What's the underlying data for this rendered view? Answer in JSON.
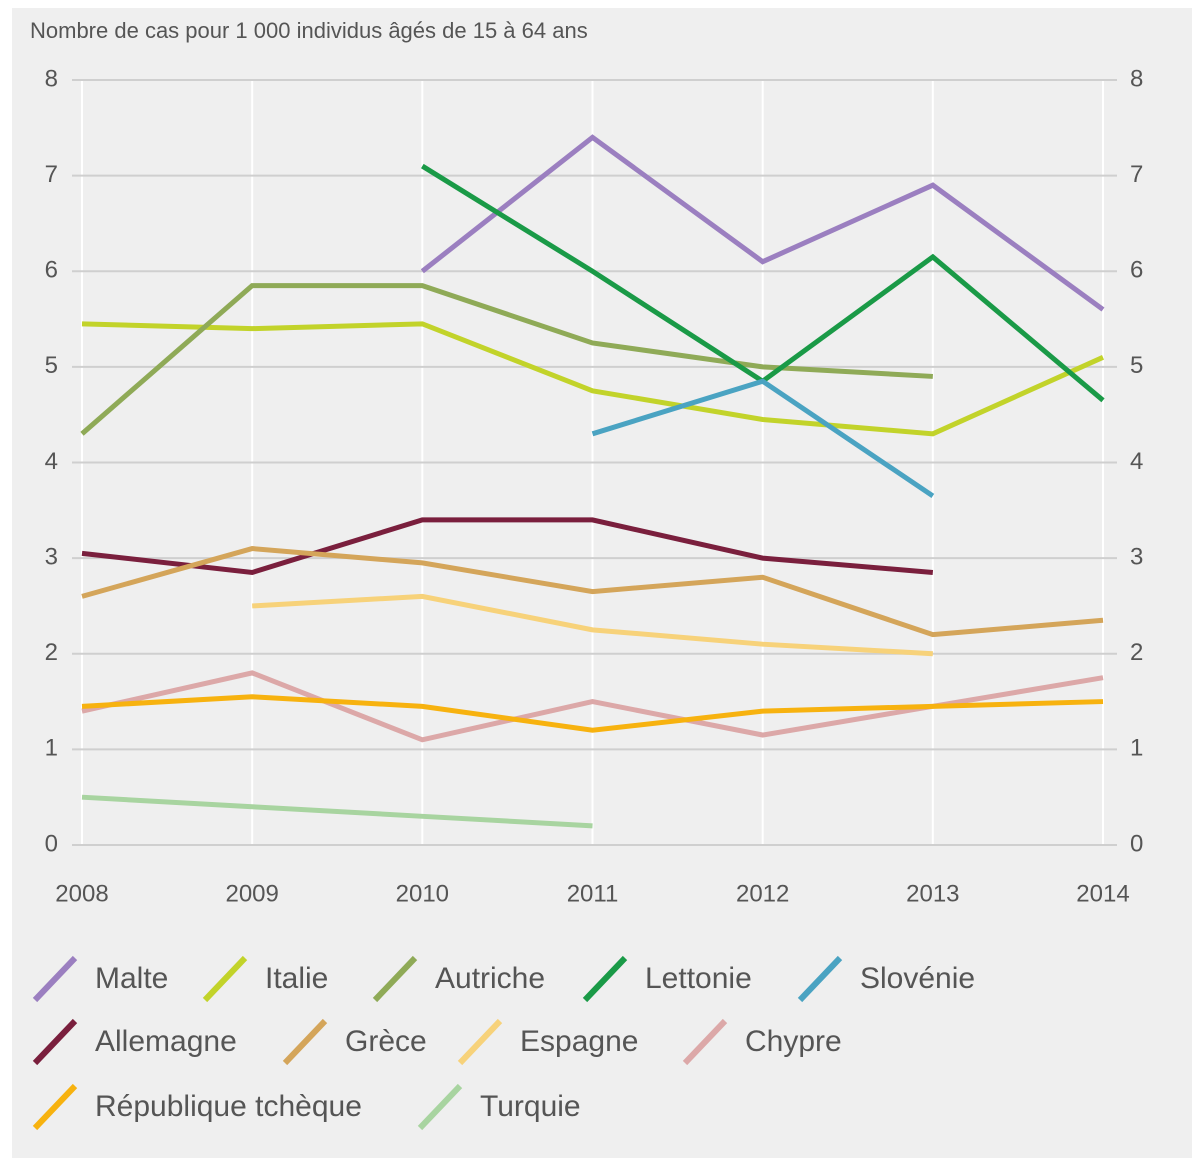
{
  "chart_data": {
    "type": "line",
    "title": "Nombre de cas pour 1 000 individus âgés de 15 à 64 ans",
    "categories": [
      "2008",
      "2009",
      "2010",
      "2011",
      "2012",
      "2013",
      "2014"
    ],
    "ylim": [
      0,
      8
    ],
    "yticks": [
      0,
      1,
      2,
      3,
      4,
      5,
      6,
      7,
      8
    ],
    "y2ticks": [
      0,
      1,
      2,
      3,
      4,
      5,
      6,
      7,
      8
    ],
    "grid": true,
    "series": [
      {
        "name": "Malte",
        "color": "#9b7fc0",
        "values": [
          null,
          null,
          6.0,
          7.4,
          6.1,
          6.9,
          5.6
        ]
      },
      {
        "name": "Italie",
        "color": "#c2d32a",
        "values": [
          5.45,
          5.4,
          5.45,
          4.75,
          4.45,
          4.3,
          5.1
        ]
      },
      {
        "name": "Autriche",
        "color": "#8faa57",
        "values": [
          4.3,
          5.85,
          5.85,
          5.25,
          5.0,
          4.9,
          null
        ]
      },
      {
        "name": "Lettonie",
        "color": "#1a9a47",
        "values": [
          null,
          null,
          7.1,
          6.0,
          4.85,
          6.15,
          4.65
        ]
      },
      {
        "name": "Slovénie",
        "color": "#4aa3c2",
        "values": [
          null,
          null,
          null,
          4.3,
          4.85,
          3.65,
          null
        ]
      },
      {
        "name": "Allemagne",
        "color": "#7a1f3d",
        "values": [
          3.05,
          2.85,
          3.4,
          3.4,
          3.0,
          2.85,
          null
        ]
      },
      {
        "name": "Grèce",
        "color": "#d4a55a",
        "values": [
          2.6,
          3.1,
          2.95,
          2.65,
          2.8,
          2.2,
          2.35
        ]
      },
      {
        "name": "Espagne",
        "color": "#f7d27a",
        "values": [
          null,
          2.5,
          2.6,
          2.25,
          2.1,
          2.0,
          null
        ]
      },
      {
        "name": "Chypre",
        "color": "#dca8a8",
        "values": [
          1.4,
          1.8,
          1.1,
          1.5,
          1.15,
          1.45,
          1.75
        ]
      },
      {
        "name": "République tchèque",
        "color": "#f7b20f",
        "values": [
          1.45,
          1.55,
          1.45,
          1.2,
          1.4,
          1.45,
          1.5
        ]
      },
      {
        "name": "Turquie",
        "color": "#a8d4a0",
        "values": [
          0.5,
          0.4,
          0.3,
          0.2,
          null,
          null,
          null
        ]
      }
    ]
  }
}
